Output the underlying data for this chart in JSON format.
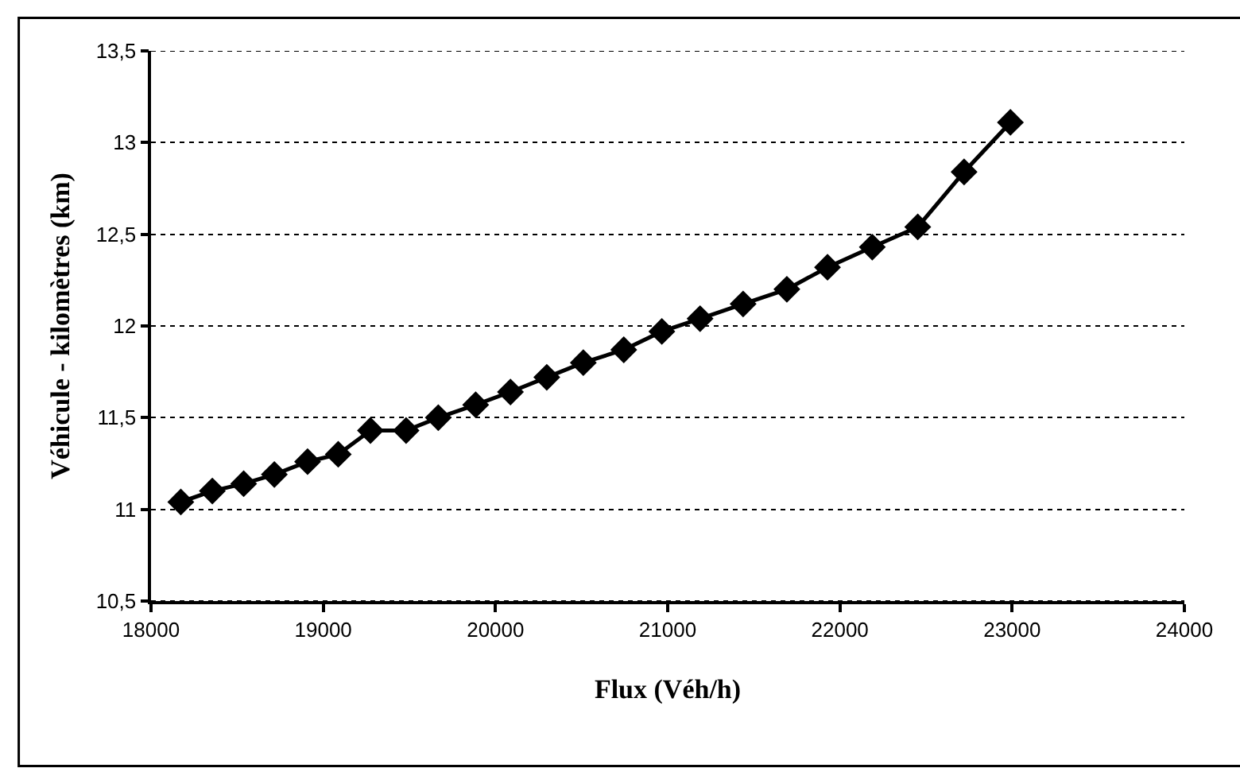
{
  "chart_data": {
    "type": "line",
    "xlabel": "Flux (Véh/h)",
    "ylabel": "Véhicule - kilomètres (km)",
    "x": [
      18173,
      18356,
      18538,
      18716,
      18909,
      19087,
      19274,
      19481,
      19668,
      19885,
      20087,
      20298,
      20510,
      20745,
      20966,
      21188,
      21438,
      21692,
      21928,
      22188,
      22452,
      22721,
      22990
    ],
    "series": [
      {
        "color": "#000000",
        "values": [
          11.04,
          11.1,
          11.14,
          11.19,
          11.26,
          11.3,
          11.43,
          11.43,
          11.5,
          11.57,
          11.64,
          11.72,
          11.8,
          11.87,
          11.97,
          12.04,
          12.12,
          12.2,
          12.32,
          12.43,
          12.54,
          12.84,
          13.11
        ]
      }
    ],
    "xlim": [
      18000,
      24000
    ],
    "xticks": [
      18000,
      19000,
      20000,
      21000,
      22000,
      23000,
      24000
    ],
    "ylim": [
      10.5,
      13.5
    ],
    "yticks": [
      {
        "value": 10.5,
        "label": "10,5"
      },
      11,
      {
        "value": 11.5,
        "label": "11,5"
      },
      12,
      {
        "value": 12.5,
        "label": "12,5"
      },
      13,
      {
        "value": 13.5,
        "label": "13,5"
      }
    ],
    "grid": "y",
    "marker": "diamond",
    "line_style": "solid"
  }
}
